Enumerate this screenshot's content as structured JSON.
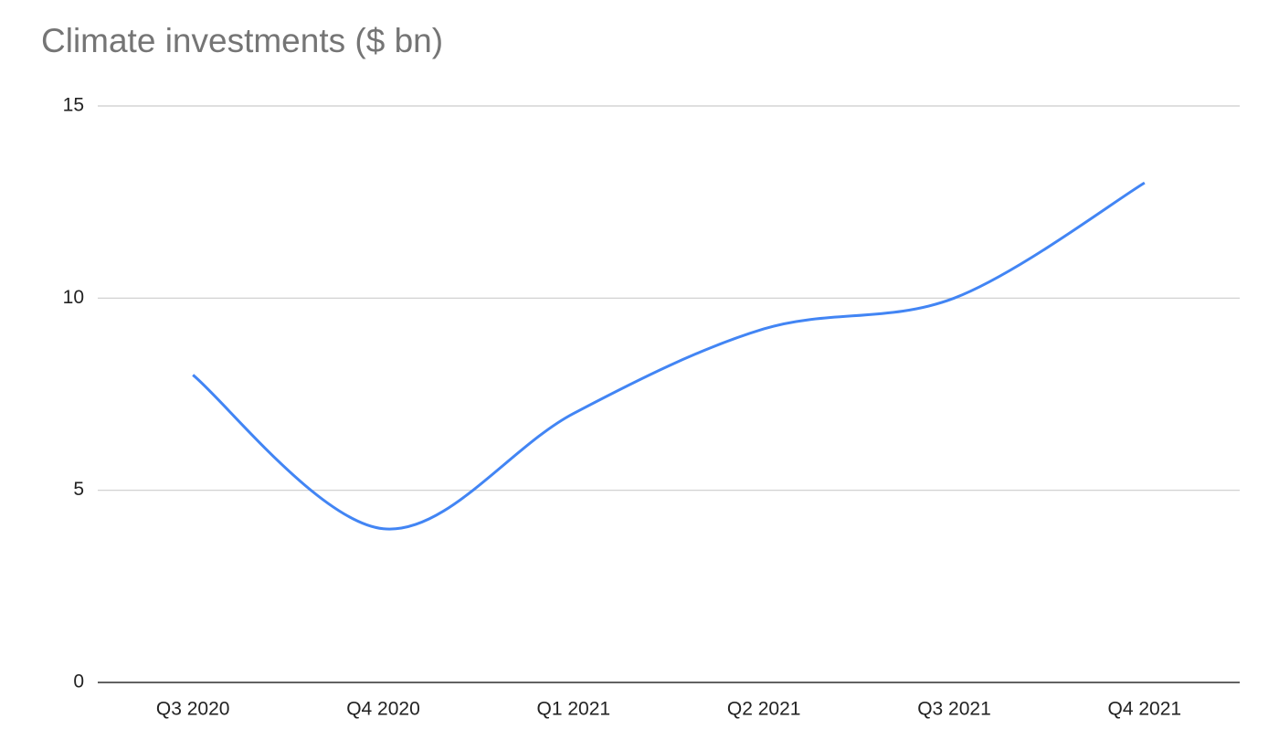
{
  "chart_data": {
    "type": "line",
    "title": "Climate investments ($ bn)",
    "categories": [
      "Q3 2020",
      "Q4 2020",
      "Q1 2021",
      "Q2 2021",
      "Q3 2021",
      "Q4 2021"
    ],
    "values": [
      8,
      4,
      7,
      9.2,
      10,
      13
    ],
    "color": "#4285f4",
    "smooth": true,
    "ylim": [
      0,
      15
    ],
    "yticks": [
      0,
      5,
      10,
      15
    ],
    "grid": true
  }
}
